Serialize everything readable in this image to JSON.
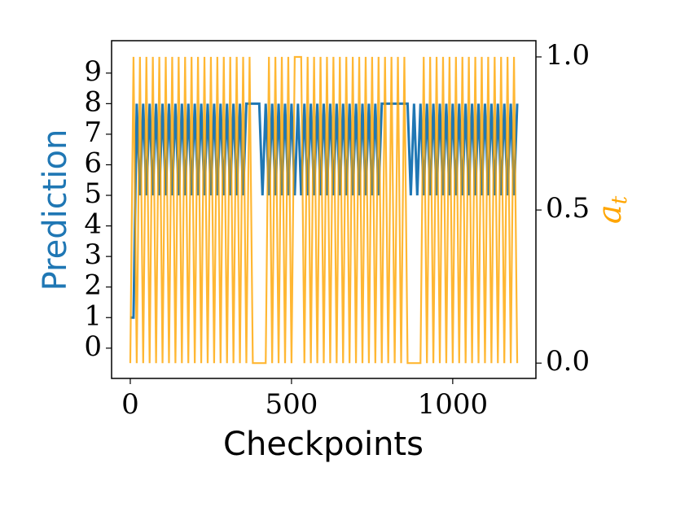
{
  "chart_data": {
    "type": "line",
    "x_label": "Checkpoints",
    "y_label": "Prediction",
    "y2_label": "a",
    "y2_label_sub": "t",
    "x": [
      0,
      10,
      20,
      30,
      40,
      50,
      60,
      70,
      80,
      90,
      100,
      110,
      120,
      130,
      140,
      150,
      160,
      170,
      180,
      190,
      200,
      210,
      220,
      230,
      240,
      250,
      260,
      270,
      280,
      290,
      300,
      310,
      320,
      330,
      340,
      350,
      360,
      370,
      380,
      390,
      400,
      410,
      420,
      430,
      440,
      450,
      460,
      470,
      480,
      490,
      500,
      510,
      520,
      530,
      540,
      550,
      560,
      570,
      580,
      590,
      600,
      610,
      620,
      630,
      640,
      650,
      660,
      670,
      680,
      690,
      700,
      710,
      720,
      730,
      740,
      750,
      760,
      770,
      780,
      790,
      800,
      810,
      820,
      830,
      840,
      850,
      860,
      870,
      880,
      890,
      900,
      910,
      920,
      930,
      940,
      950,
      960,
      970,
      980,
      990,
      1000,
      1010,
      1020,
      1030,
      1040,
      1050,
      1060,
      1070,
      1080,
      1090,
      1100,
      1110,
      1120,
      1130,
      1140,
      1150,
      1160,
      1170,
      1180,
      1190,
      1200
    ],
    "series": [
      {
        "name": "Prediction",
        "color": "#1f77b4",
        "axis": "y",
        "values": [
          1,
          1,
          8,
          5,
          8,
          5,
          8,
          5,
          8,
          5,
          8,
          5,
          8,
          5,
          8,
          5,
          8,
          5,
          8,
          5,
          8,
          5,
          8,
          5,
          8,
          5,
          8,
          5,
          8,
          5,
          8,
          5,
          8,
          5,
          8,
          5,
          8,
          8,
          8,
          8,
          8,
          5,
          8,
          5,
          8,
          5,
          8,
          5,
          8,
          5,
          8,
          5,
          8,
          5,
          8,
          5,
          8,
          5,
          8,
          5,
          8,
          5,
          8,
          5,
          8,
          5,
          8,
          5,
          8,
          5,
          8,
          5,
          8,
          5,
          8,
          5,
          8,
          5,
          8,
          8,
          8,
          8,
          8,
          8,
          8,
          8,
          8,
          5,
          8,
          5,
          8,
          5,
          8,
          5,
          8,
          5,
          8,
          5,
          8,
          5,
          8,
          5,
          8,
          5,
          8,
          5,
          8,
          5,
          8,
          5,
          8,
          5,
          8,
          5,
          8,
          5,
          8,
          5,
          8,
          5,
          8
        ]
      },
      {
        "name": "a_t",
        "color": "#ffa500",
        "axis": "y2",
        "values": [
          0,
          1,
          0,
          1,
          0,
          1,
          0,
          1,
          0,
          1,
          0,
          1,
          0,
          1,
          0,
          1,
          0,
          1,
          0,
          1,
          0,
          1,
          0,
          1,
          0,
          1,
          0,
          1,
          0,
          1,
          0,
          1,
          0,
          1,
          0,
          1,
          0,
          1,
          0,
          0,
          0,
          0,
          0,
          1,
          0,
          1,
          0,
          1,
          0,
          1,
          0,
          1,
          1,
          1,
          0,
          1,
          0,
          1,
          0,
          1,
          0,
          1,
          0,
          1,
          0,
          1,
          0,
          1,
          0,
          1,
          0,
          1,
          0,
          1,
          0,
          1,
          0,
          1,
          0,
          1,
          0,
          1,
          0,
          1,
          0,
          1,
          0,
          0,
          0,
          0,
          0,
          1,
          0,
          1,
          0,
          1,
          0,
          1,
          0,
          1,
          0,
          1,
          0,
          1,
          0,
          1,
          0,
          1,
          0,
          1,
          0,
          1,
          0,
          1,
          0,
          1,
          0,
          1,
          0,
          1,
          0
        ]
      }
    ],
    "xlim": [
      -58,
      1258
    ],
    "xticks": [
      0,
      500,
      1000
    ],
    "ylim": [
      -0.99,
      10.06
    ],
    "yticks": [
      0,
      1,
      2,
      3,
      4,
      5,
      6,
      7,
      8,
      9
    ],
    "y2lim": [
      -0.05,
      1.053
    ],
    "y2ticks": [
      {
        "value": 0,
        "label": "0.0"
      },
      {
        "value": 0.5,
        "label": "0.5"
      },
      {
        "value": 1,
        "label": "1.0"
      }
    ],
    "grid": false
  }
}
